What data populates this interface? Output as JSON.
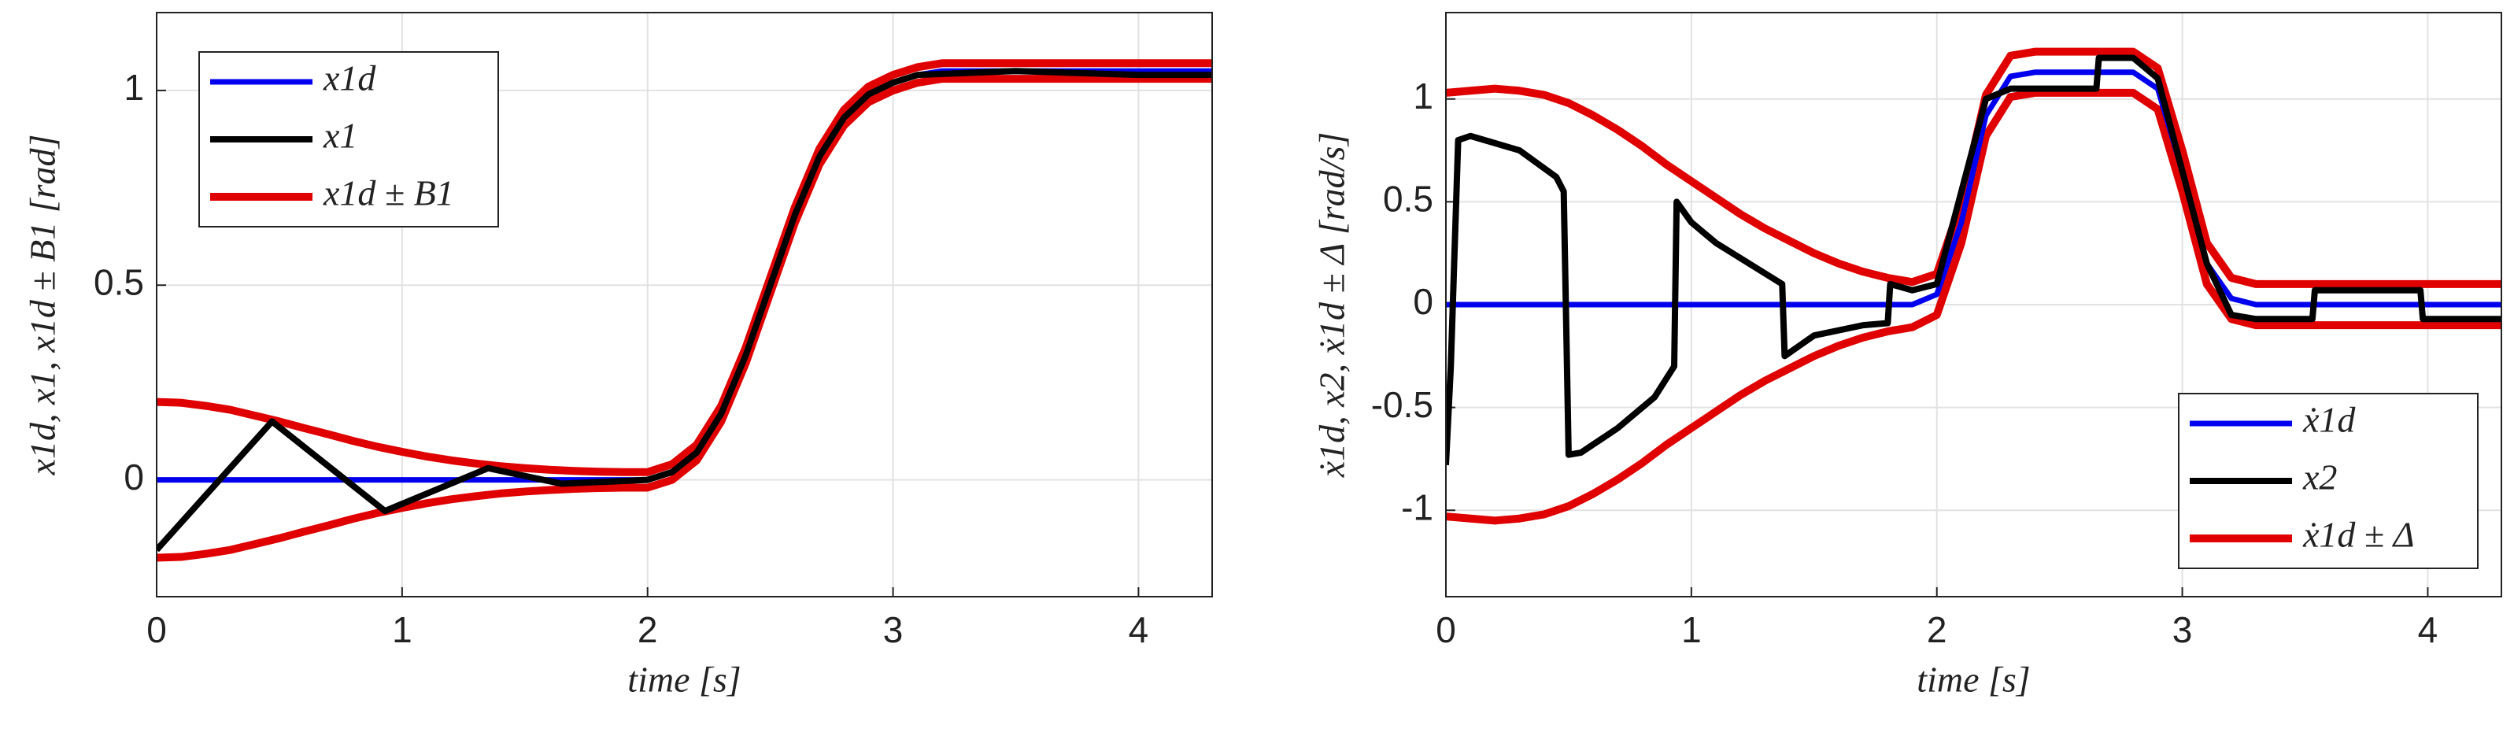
{
  "chart_data": [
    {
      "type": "line",
      "xlabel": "time [s]",
      "ylabel": "x1d, x1, x1d ± B1 [rad]",
      "grid": true,
      "legend": "upper left",
      "xlim": [
        0,
        4.3
      ],
      "ylim": [
        -0.3,
        1.2
      ],
      "xticks": [
        0,
        1,
        2,
        3,
        4
      ],
      "yticks": [
        0,
        0.5,
        1
      ],
      "x": [
        0,
        0.1,
        0.2,
        0.3,
        0.4,
        0.5,
        0.6,
        0.7,
        0.8,
        0.9,
        1,
        1.1,
        1.2,
        1.3,
        1.4,
        1.5,
        1.6,
        1.7,
        1.8,
        1.9,
        2,
        2.1,
        2.2,
        2.3,
        2.4,
        2.5,
        2.6,
        2.7,
        2.8,
        2.9,
        3,
        3.1,
        3.2,
        3.3,
        3.4,
        3.5,
        3.6,
        3.7,
        3.8,
        3.9,
        4,
        4.1,
        4.2,
        4.3
      ],
      "series": [
        {
          "name": "x1d ± B1",
          "color": "#e00000",
          "values": [
            0.2,
            0.198,
            0.19,
            0.18,
            0.165,
            0.15,
            0.133,
            0.117,
            0.1,
            0.085,
            0.072,
            0.06,
            0.05,
            0.042,
            0.035,
            0.03,
            0.026,
            0.023,
            0.021,
            0.02,
            0.02,
            0.04,
            0.09,
            0.19,
            0.34,
            0.52,
            0.7,
            0.85,
            0.95,
            1.01,
            1.04,
            1.06,
            1.07,
            1.07,
            1.07,
            1.07,
            1.07,
            1.07,
            1.07,
            1.07,
            1.07,
            1.07,
            1.07,
            1.07
          ],
          "lower": [
            -0.2,
            -0.198,
            -0.19,
            -0.18,
            -0.165,
            -0.15,
            -0.133,
            -0.117,
            -0.1,
            -0.085,
            -0.072,
            -0.06,
            -0.05,
            -0.042,
            -0.035,
            -0.03,
            -0.026,
            -0.023,
            -0.021,
            -0.02,
            -0.02,
            0,
            0.05,
            0.15,
            0.3,
            0.48,
            0.66,
            0.81,
            0.91,
            0.97,
            1.0,
            1.02,
            1.03,
            1.03,
            1.03,
            1.03,
            1.03,
            1.03,
            1.03,
            1.03,
            1.03,
            1.03,
            1.03,
            1.03
          ]
        },
        {
          "name": "x1d",
          "color": "#0000ee",
          "values": [
            0,
            0,
            0,
            0,
            0,
            0,
            0,
            0,
            0,
            0,
            0,
            0,
            0,
            0,
            0,
            0,
            0,
            0,
            0,
            0,
            0,
            0.02,
            0.07,
            0.17,
            0.32,
            0.5,
            0.68,
            0.83,
            0.93,
            0.99,
            1.02,
            1.04,
            1.05,
            1.05,
            1.05,
            1.05,
            1.05,
            1.05,
            1.05,
            1.05,
            1.05,
            1.05,
            1.05,
            1.05
          ]
        },
        {
          "name": "x1",
          "color": "#000000",
          "x": [
            0,
            0.47,
            0.93,
            1.35,
            1.65,
            2,
            2.1,
            2.2,
            2.3,
            2.4,
            2.5,
            2.6,
            2.7,
            2.8,
            2.9,
            3,
            3.1,
            3.5,
            4,
            4.3
          ],
          "values": [
            -0.18,
            0.15,
            -0.08,
            0.03,
            -0.01,
            0,
            0.02,
            0.07,
            0.17,
            0.32,
            0.5,
            0.68,
            0.83,
            0.93,
            0.99,
            1.02,
            1.04,
            1.05,
            1.04,
            1.04
          ]
        }
      ]
    },
    {
      "type": "line",
      "xlabel": "time [s]",
      "ylabel": "ẋ1d, x2, ẋ1d ± Δ [rad/s]",
      "grid": true,
      "legend": "lower right",
      "xlim": [
        0,
        4.3
      ],
      "ylim": [
        -1.42,
        1.42
      ],
      "xticks": [
        0,
        1,
        2,
        3,
        4
      ],
      "yticks": [
        -1,
        -0.5,
        0,
        0.5,
        1
      ],
      "x": [
        0,
        0.1,
        0.2,
        0.3,
        0.4,
        0.5,
        0.6,
        0.7,
        0.8,
        0.9,
        1,
        1.1,
        1.2,
        1.3,
        1.4,
        1.5,
        1.6,
        1.7,
        1.8,
        1.9,
        2,
        2.1,
        2.2,
        2.3,
        2.4,
        2.5,
        2.6,
        2.7,
        2.8,
        2.9,
        3,
        3.1,
        3.2,
        3.3,
        3.4,
        3.5,
        3.6,
        3.7,
        3.8,
        3.9,
        4,
        4.1,
        4.2,
        4.3
      ],
      "series": [
        {
          "name": "ẋ1d ± Δ",
          "color": "#e00000",
          "values": [
            1.03,
            1.04,
            1.05,
            1.04,
            1.02,
            0.98,
            0.92,
            0.85,
            0.77,
            0.68,
            0.6,
            0.52,
            0.44,
            0.37,
            0.31,
            0.25,
            0.2,
            0.16,
            0.13,
            0.11,
            0.15,
            0.5,
            1.02,
            1.21,
            1.23,
            1.23,
            1.23,
            1.23,
            1.23,
            1.15,
            0.75,
            0.3,
            0.13,
            0.1,
            0.1,
            0.1,
            0.1,
            0.1,
            0.1,
            0.1,
            0.1,
            0.1,
            0.1,
            0.1
          ],
          "lower": [
            -1.03,
            -1.04,
            -1.05,
            -1.04,
            -1.02,
            -0.98,
            -0.92,
            -0.85,
            -0.77,
            -0.68,
            -0.6,
            -0.52,
            -0.44,
            -0.37,
            -0.31,
            -0.25,
            -0.2,
            -0.16,
            -0.13,
            -0.11,
            -0.05,
            0.3,
            0.82,
            1.01,
            1.03,
            1.03,
            1.03,
            1.03,
            1.03,
            0.95,
            0.55,
            0.1,
            -0.07,
            -0.1,
            -0.1,
            -0.1,
            -0.1,
            -0.1,
            -0.1,
            -0.1,
            -0.1,
            -0.1,
            -0.1,
            -0.1
          ]
        },
        {
          "name": "ẋ1d",
          "color": "#0000ee",
          "values": [
            0,
            0,
            0,
            0,
            0,
            0,
            0,
            0,
            0,
            0,
            0,
            0,
            0,
            0,
            0,
            0,
            0,
            0,
            0,
            0,
            0.05,
            0.4,
            0.92,
            1.11,
            1.13,
            1.13,
            1.13,
            1.13,
            1.13,
            1.05,
            0.65,
            0.2,
            0.03,
            0,
            0,
            0,
            0,
            0,
            0,
            0,
            0,
            0,
            0,
            0
          ]
        },
        {
          "name": "x2",
          "color": "#000000",
          "x": [
            0,
            0.02,
            0.05,
            0.1,
            0.3,
            0.45,
            0.48,
            0.5,
            0.55,
            0.7,
            0.85,
            0.93,
            0.94,
            1,
            1.1,
            1.37,
            1.38,
            1.5,
            1.7,
            1.8,
            1.81,
            1.9,
            2,
            2.1,
            2.2,
            2.3,
            2.65,
            2.66,
            2.8,
            2.9,
            3,
            3.1,
            3.2,
            3.3,
            3.53,
            3.54,
            3.97,
            3.98,
            4.3
          ],
          "values": [
            -0.78,
            -0.3,
            0.8,
            0.82,
            0.75,
            0.62,
            0.55,
            -0.73,
            -0.72,
            -0.6,
            -0.45,
            -0.3,
            0.5,
            0.4,
            0.3,
            0.1,
            -0.25,
            -0.15,
            -0.1,
            -0.09,
            0.1,
            0.07,
            0.1,
            0.55,
            1.0,
            1.05,
            1.05,
            1.2,
            1.2,
            1.1,
            0.65,
            0.2,
            -0.05,
            -0.07,
            -0.07,
            0.07,
            0.07,
            -0.07,
            -0.07
          ]
        }
      ]
    }
  ]
}
